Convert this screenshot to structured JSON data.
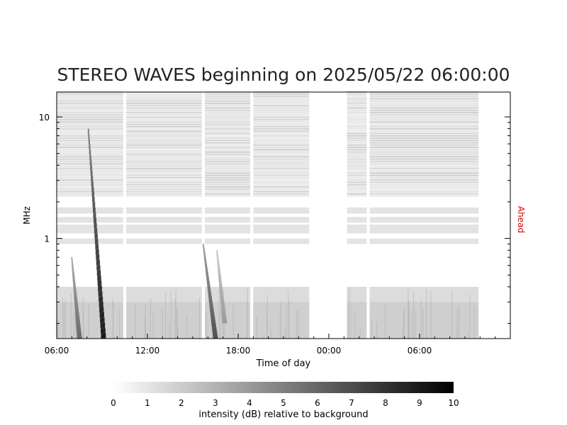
{
  "chart_data": {
    "type": "heatmap",
    "title": "STEREO WAVES beginning on 2025/05/22 06:00:00",
    "xlabel": "Time of day",
    "ylabel": "MHz",
    "right_label": "Ahead",
    "y_scale": "log",
    "ylim": [
      0.15,
      16
    ],
    "x_start_hour": 6,
    "x_span_hours": 30,
    "x_ticks": [
      {
        "label": "06:00",
        "hour": 0
      },
      {
        "label": "12:00",
        "hour": 6
      },
      {
        "label": "18:00",
        "hour": 12
      },
      {
        "label": "00:00",
        "hour": 18
      },
      {
        "label": "06:00",
        "hour": 24
      }
    ],
    "y_ticks": [
      {
        "label": "1",
        "value": 1
      },
      {
        "label": "10",
        "value": 10
      }
    ],
    "data_segments_hours": [
      [
        0.0,
        4.4
      ],
      [
        4.6,
        9.6
      ],
      [
        9.8,
        12.8
      ],
      [
        13.0,
        16.7
      ],
      [
        19.2,
        20.5
      ],
      [
        20.7,
        27.9
      ]
    ],
    "bursts": [
      {
        "start_hour": 2.1,
        "end_hour": 3.0,
        "fmax_mhz": 8,
        "fmin_mhz": 0.15,
        "intensity_db": 9
      },
      {
        "start_hour": 1.0,
        "end_hour": 1.4,
        "fmax_mhz": 0.7,
        "fmin_mhz": 0.15,
        "intensity_db": 6
      },
      {
        "start_hour": 9.7,
        "end_hour": 10.4,
        "fmax_mhz": 0.9,
        "fmin_mhz": 0.15,
        "intensity_db": 7
      },
      {
        "start_hour": 10.6,
        "end_hour": 11.0,
        "fmax_mhz": 0.8,
        "fmin_mhz": 0.2,
        "intensity_db": 4
      }
    ],
    "colorbar": {
      "label": "intensity (dB) relative to background",
      "min": 0,
      "max": 10,
      "ticks": [
        "0",
        "1",
        "2",
        "3",
        "4",
        "5",
        "6",
        "7",
        "8",
        "9",
        "10"
      ]
    }
  }
}
